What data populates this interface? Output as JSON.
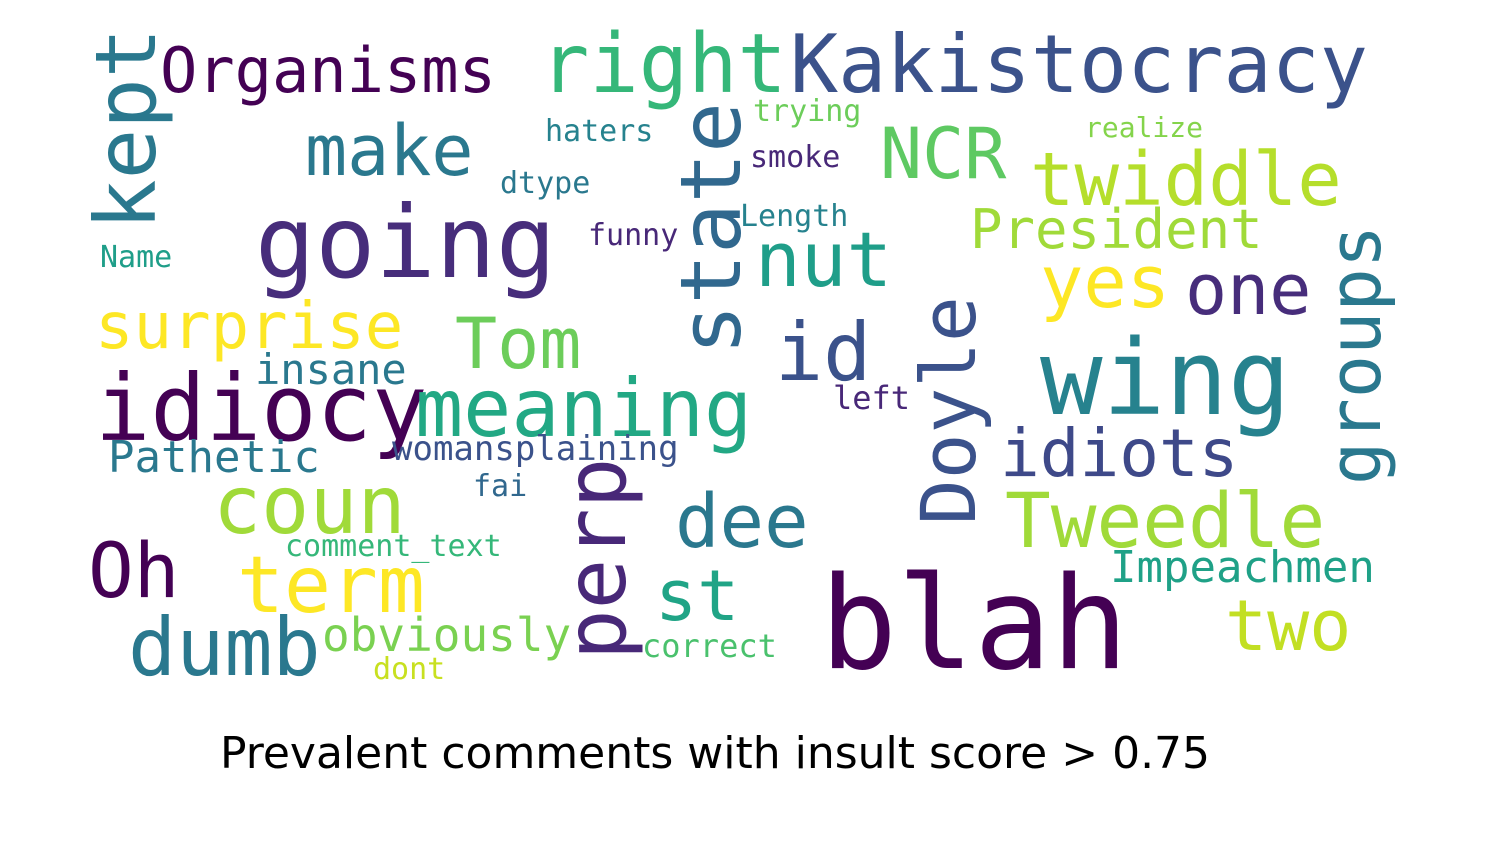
{
  "caption": "Prevalent comments with insult score > 0.75",
  "words": [
    {
      "text": "Organisms",
      "color": "#440154"
    },
    {
      "text": "right",
      "color": "#35b779"
    },
    {
      "text": "Kakistocracy",
      "color": "#3b528b"
    },
    {
      "text": "kept",
      "color": "#2a788e"
    },
    {
      "text": "make",
      "color": "#2a788e"
    },
    {
      "text": "going",
      "color": "#472d7b"
    },
    {
      "text": "state",
      "color": "#31688e"
    },
    {
      "text": "NCR",
      "color": "#5ec962"
    },
    {
      "text": "twiddle",
      "color": "#b5de2b"
    },
    {
      "text": "trying",
      "color": "#6ccd5a"
    },
    {
      "text": "haters",
      "color": "#26828e"
    },
    {
      "text": "realize",
      "color": "#84d44b"
    },
    {
      "text": "smoke",
      "color": "#482878"
    },
    {
      "text": "dtype",
      "color": "#2a788e"
    },
    {
      "text": "Length",
      "color": "#26828e"
    },
    {
      "text": "funny",
      "color": "#482878"
    },
    {
      "text": "President",
      "color": "#a0da39"
    },
    {
      "text": "Name",
      "color": "#1f9e89"
    },
    {
      "text": "nut",
      "color": "#1f9e89"
    },
    {
      "text": "yes",
      "color": "#fde725"
    },
    {
      "text": "one",
      "color": "#472d7b"
    },
    {
      "text": "groups",
      "color": "#2a788e"
    },
    {
      "text": "surprise",
      "color": "#fde725"
    },
    {
      "text": "Tom",
      "color": "#6ccd5a"
    },
    {
      "text": "id",
      "color": "#3b528b"
    },
    {
      "text": "Doyle",
      "color": "#3b528b"
    },
    {
      "text": "wing",
      "color": "#26828e"
    },
    {
      "text": "insane",
      "color": "#2a788e"
    },
    {
      "text": "idiocy",
      "color": "#440154"
    },
    {
      "text": "meaning",
      "color": "#22a884"
    },
    {
      "text": "left",
      "color": "#482878"
    },
    {
      "text": "Pathetic",
      "color": "#2a788e"
    },
    {
      "text": "womansplaining",
      "color": "#3b528b"
    },
    {
      "text": "idiots",
      "color": "#3e4989"
    },
    {
      "text": "fai",
      "color": "#31688e"
    },
    {
      "text": "coun",
      "color": "#a0da39"
    },
    {
      "text": "perp",
      "color": "#482878"
    },
    {
      "text": "dee",
      "color": "#2a788e"
    },
    {
      "text": "Tweedle",
      "color": "#a0da39"
    },
    {
      "text": "Oh",
      "color": "#440154"
    },
    {
      "text": "comment_text",
      "color": "#35b779"
    },
    {
      "text": "term",
      "color": "#fde725"
    },
    {
      "text": "st",
      "color": "#20a486"
    },
    {
      "text": "Impeachmen",
      "color": "#1fa187"
    },
    {
      "text": "blah",
      "color": "#440154"
    },
    {
      "text": "dumb",
      "color": "#2a788e"
    },
    {
      "text": "obviously",
      "color": "#7ad151"
    },
    {
      "text": "correct",
      "color": "#4ac16d"
    },
    {
      "text": "two",
      "color": "#c2df23"
    },
    {
      "text": "dont",
      "color": "#c8e020"
    }
  ]
}
